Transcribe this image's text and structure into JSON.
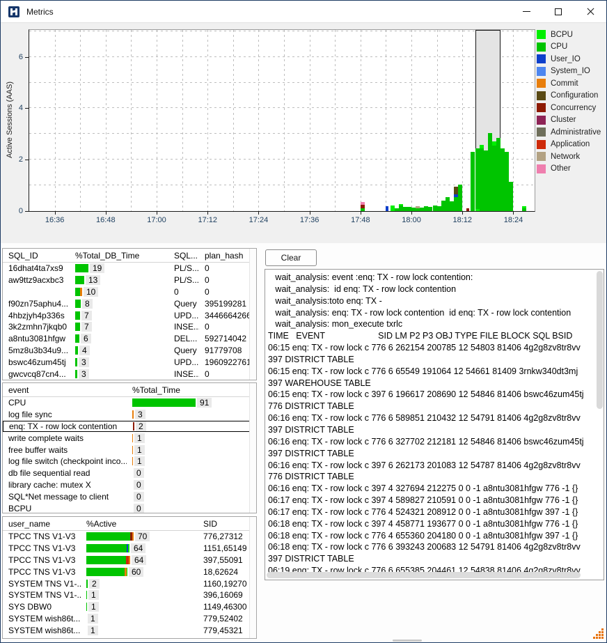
{
  "window": {
    "title": "Metrics"
  },
  "palette": {
    "BCPU": "#00ef00",
    "CPU": "#00c400",
    "User_IO": "#0d3fcb",
    "System_IO": "#4d86f0",
    "Commit": "#e87e0c",
    "Configuration": "#5a4a15",
    "Concurrency": "#8e1b04",
    "Cluster": "#8e2456",
    "Administrative": "#6f6f5b",
    "Application": "#ce2a09",
    "Network": "#b3a283",
    "Other": "#ef7fae",
    "tick_label": "#1f4060",
    "grip": "#e87511"
  },
  "chart_data": {
    "type": "bar",
    "title": "",
    "ylabel": "Active Sessions (AAS)",
    "ylim": [
      0,
      7.05
    ],
    "yticks": [
      0,
      2,
      4,
      6
    ],
    "x_start_min": 990,
    "x_end_min": 1109,
    "xticks": [
      "16:36",
      "16:48",
      "17:00",
      "17:12",
      "17:24",
      "17:36",
      "17:48",
      "18:00",
      "18:12",
      "18:24"
    ],
    "grid": "dashed",
    "legend_position": "right",
    "legend": [
      {
        "label": "BCPU",
        "color": "#00ef00"
      },
      {
        "label": "CPU",
        "color": "#00c400"
      },
      {
        "label": "User_IO",
        "color": "#0d3fcb"
      },
      {
        "label": "System_IO",
        "color": "#4d86f0"
      },
      {
        "label": "Commit",
        "color": "#e87e0c"
      },
      {
        "label": "Configuration",
        "color": "#5a4a15"
      },
      {
        "label": "Concurrency",
        "color": "#8e1b04"
      },
      {
        "label": "Cluster",
        "color": "#8e2456"
      },
      {
        "label": "Administrative",
        "color": "#6f6f5b"
      },
      {
        "label": "Application",
        "color": "#ce2a09"
      },
      {
        "label": "Network",
        "color": "#b3a283"
      },
      {
        "label": "Other",
        "color": "#ef7fae"
      }
    ],
    "selection": {
      "from": "18:15",
      "to": "18:21"
    },
    "bars": [
      {
        "t": "17:48",
        "seg": [
          [
            "CPU",
            0.12
          ],
          [
            "Concurrency",
            0.13
          ],
          [
            "Other",
            0.11
          ]
        ]
      },
      {
        "t": "17:54",
        "w": 4,
        "seg": [
          [
            "User_IO",
            0.18
          ]
        ]
      },
      {
        "t": "17:55",
        "seg": [
          [
            "BCPU",
            0.21
          ]
        ]
      },
      {
        "t": "17:56",
        "seg": [
          [
            "CPU",
            0.1
          ]
        ]
      },
      {
        "t": "17:57",
        "seg": [
          [
            "CPU",
            0.22
          ],
          [
            "BCPU",
            0.05
          ]
        ]
      },
      {
        "t": "17:58",
        "seg": [
          [
            "CPU",
            0.16
          ]
        ]
      },
      {
        "t": "17:59",
        "seg": [
          [
            "CPU",
            0.16
          ]
        ]
      },
      {
        "t": "18:00",
        "seg": [
          [
            "CPU",
            0.13
          ]
        ]
      },
      {
        "t": "18:01",
        "seg": [
          [
            "CPU",
            0.12
          ],
          [
            "Network",
            0.08
          ]
        ]
      },
      {
        "t": "18:02",
        "seg": [
          [
            "CPU",
            0.13
          ]
        ]
      },
      {
        "t": "18:03",
        "seg": [
          [
            "CPU",
            0.19
          ]
        ]
      },
      {
        "t": "18:04",
        "seg": [
          [
            "CPU",
            0.16
          ]
        ]
      },
      {
        "t": "18:05",
        "seg": [
          [
            "CPU",
            0.21
          ]
        ]
      },
      {
        "t": "18:06",
        "seg": [
          [
            "CPU",
            0.19
          ]
        ]
      },
      {
        "t": "18:07",
        "seg": [
          [
            "CPU",
            0.4
          ]
        ]
      },
      {
        "t": "18:08",
        "seg": [
          [
            "CPU",
            0.55
          ]
        ]
      },
      {
        "t": "18:09",
        "seg": [
          [
            "CPU",
            0.38
          ]
        ]
      },
      {
        "t": "18:10",
        "seg": [
          [
            "CPU",
            0.55
          ],
          [
            "User_IO",
            0.1
          ],
          [
            "Configuration",
            0.3
          ]
        ]
      },
      {
        "t": "18:11",
        "seg": [
          [
            "CPU",
            1.02
          ]
        ]
      },
      {
        "t": "18:13",
        "w": 4,
        "seg": [
          [
            "Concurrency",
            0.1
          ]
        ]
      },
      {
        "t": "18:14",
        "seg": [
          [
            "CPU",
            2.3
          ]
        ]
      },
      {
        "t": "18:15",
        "seg": [
          [
            "BCPU",
            0.08
          ],
          [
            "CPU",
            2.35
          ]
        ]
      },
      {
        "t": "18:16",
        "seg": [
          [
            "CPU",
            2.45
          ],
          [
            "BCPU",
            0.12
          ]
        ]
      },
      {
        "t": "18:17",
        "seg": [
          [
            "CPU",
            2.35
          ]
        ]
      },
      {
        "t": "18:18",
        "seg": [
          [
            "CPU",
            3.05
          ]
        ]
      },
      {
        "t": "18:19",
        "seg": [
          [
            "CPU",
            2.55
          ],
          [
            "BCPU",
            0.15
          ]
        ]
      },
      {
        "t": "18:20",
        "seg": [
          [
            "CPU",
            2.85
          ]
        ]
      },
      {
        "t": "18:21",
        "seg": [
          [
            "CPU",
            2.45
          ]
        ]
      },
      {
        "t": "18:22",
        "seg": [
          [
            "CPU",
            2.3
          ]
        ]
      },
      {
        "t": "18:23",
        "seg": [
          [
            "CPU",
            1.15
          ]
        ]
      },
      {
        "t": "18:26",
        "seg": [
          [
            "CPU",
            0.12
          ],
          [
            "BCPU",
            0.08
          ]
        ]
      }
    ]
  },
  "sql_table": {
    "headers": [
      "SQL_ID",
      "%Total_DB_Time",
      "SQL...",
      "plan_hash"
    ],
    "rows": [
      {
        "sql_id": "16dhat4ta7xs9",
        "pct": "19",
        "bar": [
          [
            "CPU",
            19
          ]
        ],
        "sql": "PL/S...",
        "plan": "0"
      },
      {
        "sql_id": "aw9ttz9acxbc3",
        "pct": "13",
        "bar": [
          [
            "CPU",
            13
          ]
        ],
        "sql": "PL/S...",
        "plan": "0"
      },
      {
        "sql_id": "",
        "pct": "10",
        "bar": [
          [
            "CPU",
            7
          ],
          [
            "Commit",
            3
          ]
        ],
        "sql": "0",
        "plan": "0"
      },
      {
        "sql_id": "f90zn75aphu4...",
        "pct": "8",
        "bar": [
          [
            "CPU",
            8
          ]
        ],
        "sql": "Query",
        "plan": "395199281"
      },
      {
        "sql_id": "4hbzjyh4p336s",
        "pct": "7",
        "bar": [
          [
            "CPU",
            7
          ]
        ],
        "sql": "UPD...",
        "plan": "3446664266"
      },
      {
        "sql_id": "3k2zmhn7jkqb0",
        "pct": "7",
        "bar": [
          [
            "CPU",
            7
          ]
        ],
        "sql": "INSE...",
        "plan": "0"
      },
      {
        "sql_id": "a8ntu3081hfgw",
        "pct": "6",
        "bar": [
          [
            "CPU",
            6
          ]
        ],
        "sql": "DEL...",
        "plan": "592714042"
      },
      {
        "sql_id": "5mz8u3b34u9...",
        "pct": "4",
        "bar": [
          [
            "CPU",
            4
          ]
        ],
        "sql": "Query",
        "plan": "91779708"
      },
      {
        "sql_id": "bswc46zum45tj",
        "pct": "3",
        "bar": [
          [
            "CPU",
            3
          ]
        ],
        "sql": "UPD...",
        "plan": "1960922761"
      },
      {
        "sql_id": "gwcvcq87cn4...",
        "pct": "3",
        "bar": [
          [
            "CPU",
            3
          ]
        ],
        "sql": "INSE...",
        "plan": "0"
      }
    ]
  },
  "event_table": {
    "headers": [
      "event",
      "%Total_Time"
    ],
    "rows": [
      {
        "event": "CPU",
        "pct": "91",
        "bar": [
          [
            "CPU",
            91
          ]
        ],
        "selected": false
      },
      {
        "event": "log file sync",
        "pct": "3",
        "bar": [
          [
            "Commit",
            2
          ]
        ],
        "selected": false
      },
      {
        "event": "enq: TX - row lock contention",
        "pct": "2",
        "bar": [
          [
            "Concurrency",
            2
          ]
        ],
        "selected": true
      },
      {
        "event": "write complete waits",
        "pct": "1",
        "bar": [
          [
            "Commit",
            1
          ]
        ],
        "selected": false
      },
      {
        "event": "free buffer waits",
        "pct": "1",
        "bar": [
          [
            "Commit",
            1
          ]
        ],
        "selected": false
      },
      {
        "event": "log file switch (checkpoint inco...",
        "pct": "1",
        "bar": [
          [
            "Commit",
            1
          ]
        ],
        "selected": false
      },
      {
        "event": "db file sequential read",
        "pct": "0",
        "bar": [],
        "selected": false
      },
      {
        "event": "library cache: mutex X",
        "pct": "0",
        "bar": [],
        "selected": false
      },
      {
        "event": "SQL*Net message to client",
        "pct": "0",
        "bar": [],
        "selected": false
      },
      {
        "event": "BCPU",
        "pct": "0",
        "bar": [],
        "selected": false
      }
    ]
  },
  "user_table": {
    "headers": [
      "user_name",
      "%Active",
      "SID"
    ],
    "rows": [
      {
        "user": "TPCC TNS V1-V3",
        "pct": "70",
        "bar": [
          [
            "CPU",
            63
          ],
          [
            "Concurrency",
            3
          ],
          [
            "Commit",
            2
          ]
        ],
        "sid": "776,27312"
      },
      {
        "user": "TPCC TNS V1-V3",
        "pct": "64",
        "bar": [
          [
            "CPU",
            58
          ],
          [
            "User_IO",
            2
          ],
          [
            "BCPU",
            2
          ]
        ],
        "sid": "1151,65149"
      },
      {
        "user": "TPCC TNS V1-V3",
        "pct": "64",
        "bar": [
          [
            "CPU",
            57
          ],
          [
            "Application",
            4
          ],
          [
            "Commit",
            2
          ]
        ],
        "sid": "397,55091"
      },
      {
        "user": "TPCC TNS V1-V3",
        "pct": "60",
        "bar": [
          [
            "CPU",
            55
          ],
          [
            "Commit",
            3
          ],
          [
            "BCPU",
            1
          ]
        ],
        "sid": "18,62624"
      },
      {
        "user": "SYSTEM TNS V1-...",
        "pct": "2",
        "bar": [
          [
            "CPU",
            2
          ]
        ],
        "sid": "1160,19270"
      },
      {
        "user": "SYSTEM TNS V1-...",
        "pct": "1",
        "bar": [
          [
            "CPU",
            1
          ]
        ],
        "sid": "396,16069"
      },
      {
        "user": "SYS DBW0",
        "pct": "1",
        "bar": [
          [
            "CPU",
            1
          ]
        ],
        "sid": "1149,46300"
      },
      {
        "user": "SYSTEM wish86t....",
        "pct": "1",
        "bar": [],
        "sid": "779,52402"
      },
      {
        "user": "SYSTEM wish86t...",
        "pct": "1",
        "bar": [],
        "sid": "779,45321"
      }
    ]
  },
  "log_panel": {
    "clear_label": "Clear",
    "lines": [
      "   wait_analysis: event :enq: TX - row lock contention:",
      "   wait_analysis:  id enq: TX - row lock contention",
      "   wait_analysis:toto enq: TX -",
      "   wait_analysis: enq: TX - row lock contention  id enq: TX - row lock contention",
      "   wait_analysis: mon_execute txrlc",
      "TIME   EVENT                      SID LM P2 P3 OBJ TYPE FILE BLOCK SQL BSID",
      "06:15 enq: TX - row lock c 776 6 262154 200785 12 54803 81406 4g2g8zv8tr8vv",
      "397 DISTRICT TABLE",
      "06:15 enq: TX - row lock c 776 6 65549 191064 12 54661 81409 3rnkw340dt3mj",
      "397 WAREHOUSE TABLE",
      "06:15 enq: TX - row lock c 397 6 196617 208690 12 54846 81406 bswc46zum45tj",
      "776 DISTRICT TABLE",
      "06:16 enq: TX - row lock c 776 6 589851 210432 12 54791 81406 4g2g8zv8tr8vv",
      "397 DISTRICT TABLE",
      "06:16 enq: TX - row lock c 776 6 327702 212181 12 54846 81406 bswc46zum45tj",
      "397 DISTRICT TABLE",
      "06:16 enq: TX - row lock c 397 6 262173 201083 12 54787 81406 4g2g8zv8tr8vv",
      "776 DISTRICT TABLE",
      "06:16 enq: TX - row lock c 397 4 327694 212275 0 0 -1 a8ntu3081hfgw 776 -1 {}",
      "06:17 enq: TX - row lock c 397 4 589827 210591 0 0 -1 a8ntu3081hfgw 776 -1 {}",
      "06:17 enq: TX - row lock c 776 4 524321 208912 0 0 -1 a8ntu3081hfgw 397 -1 {}",
      "06:18 enq: TX - row lock c 397 4 458771 193677 0 0 -1 a8ntu3081hfgw 776 -1 {}",
      "06:18 enq: TX - row lock c 776 4 655360 204180 0 0 -1 a8ntu3081hfgw 397 -1 {}",
      "06:18 enq: TX - row lock c 776 6 393243 200683 12 54791 81406 4g2g8zv8tr8vv",
      "397 DISTRICT TABLE",
      "06:19 enq: TX - row lock c 776 6 655385 204461 12 54838 81406 4g2g8zv8tr8vv"
    ]
  }
}
